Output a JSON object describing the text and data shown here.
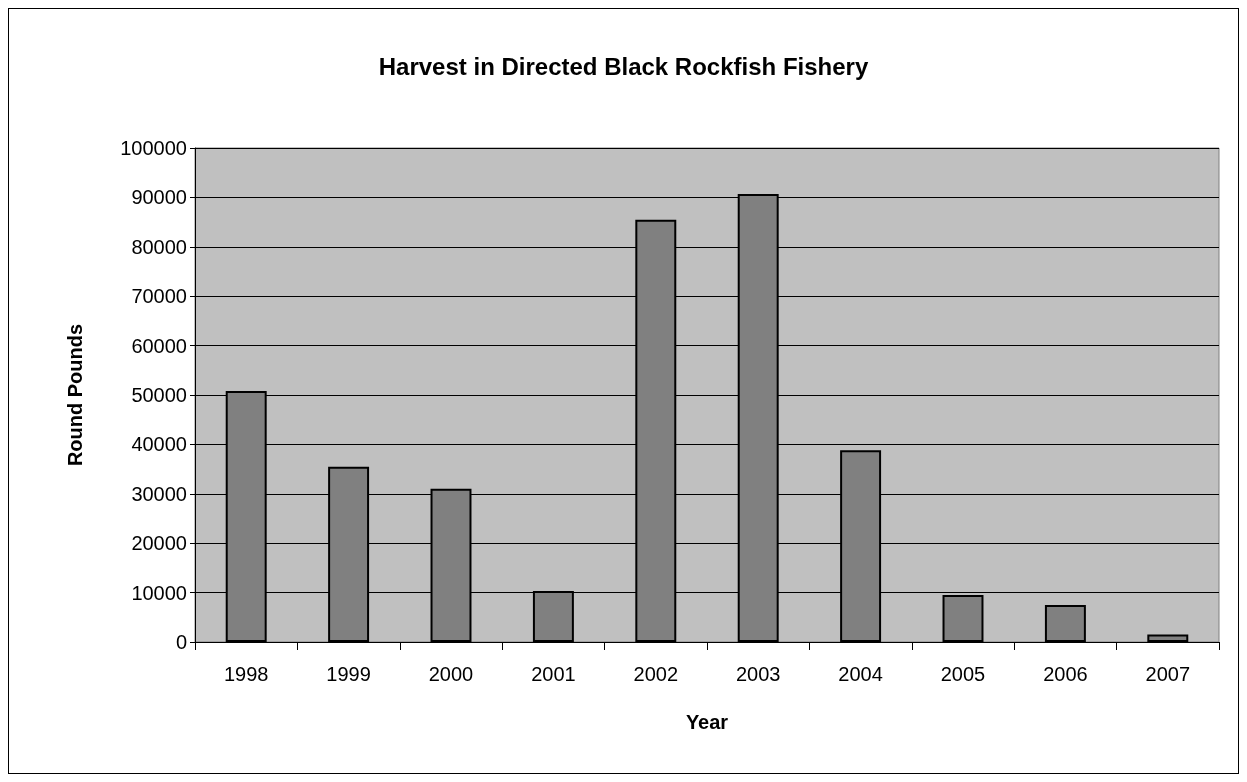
{
  "chart_data": {
    "type": "bar",
    "title": "Harvest in Directed Black Rockfish Fishery",
    "xlabel": "Year",
    "ylabel": "Round Pounds",
    "categories": [
      "1998",
      "1999",
      "2000",
      "2001",
      "2002",
      "2003",
      "2004",
      "2005",
      "2006",
      "2007"
    ],
    "values": [
      50800,
      35500,
      31000,
      10300,
      85500,
      90700,
      38800,
      9500,
      7500,
      1500
    ],
    "color": "#808080",
    "ylim": [
      0,
      100000
    ],
    "yticks": [
      0,
      10000,
      20000,
      30000,
      40000,
      50000,
      60000,
      70000,
      80000,
      90000,
      100000
    ],
    "grid": "y"
  }
}
